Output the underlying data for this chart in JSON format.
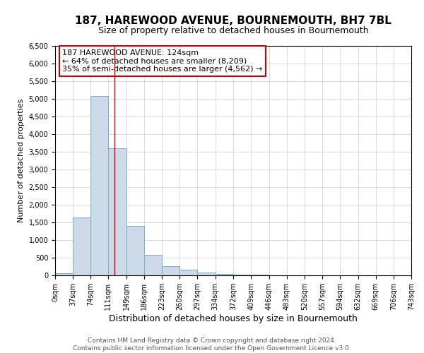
{
  "title": "187, HAREWOOD AVENUE, BOURNEMOUTH, BH7 7BL",
  "subtitle": "Size of property relative to detached houses in Bournemouth",
  "xlabel": "Distribution of detached houses by size in Bournemouth",
  "ylabel": "Number of detached properties",
  "footer_line1": "Contains HM Land Registry data © Crown copyright and database right 2024.",
  "footer_line2": "Contains public sector information licensed under the Open Government Licence v3.0.",
  "annotation_line1": "187 HAREWOOD AVENUE: 124sqm",
  "annotation_line2": "← 64% of detached houses are smaller (8,209)",
  "annotation_line3": "35% of semi-detached houses are larger (4,562) →",
  "property_size": 124,
  "bin_edges": [
    0,
    37,
    74,
    111,
    149,
    186,
    223,
    260,
    297,
    334,
    372,
    409,
    446,
    483,
    520,
    557,
    594,
    632,
    669,
    706,
    743
  ],
  "bar_heights": [
    60,
    1650,
    5080,
    3600,
    1400,
    580,
    270,
    160,
    80,
    50,
    30,
    15,
    8,
    4,
    2,
    1,
    0,
    0,
    0,
    0
  ],
  "bar_facecolor": "#ccd9e8",
  "bar_edgecolor": "#7aadce",
  "vline_color": "#cc0000",
  "annotation_box_edgecolor": "#cc0000",
  "annotation_box_facecolor": "#ffffff",
  "grid_color": "#cccccc",
  "background_color": "#ffffff",
  "ylim": [
    0,
    6500
  ],
  "title_fontsize": 11,
  "subtitle_fontsize": 9,
  "xlabel_fontsize": 9,
  "ylabel_fontsize": 8,
  "tick_fontsize": 7,
  "annotation_fontsize": 8,
  "footer_fontsize": 6.5
}
